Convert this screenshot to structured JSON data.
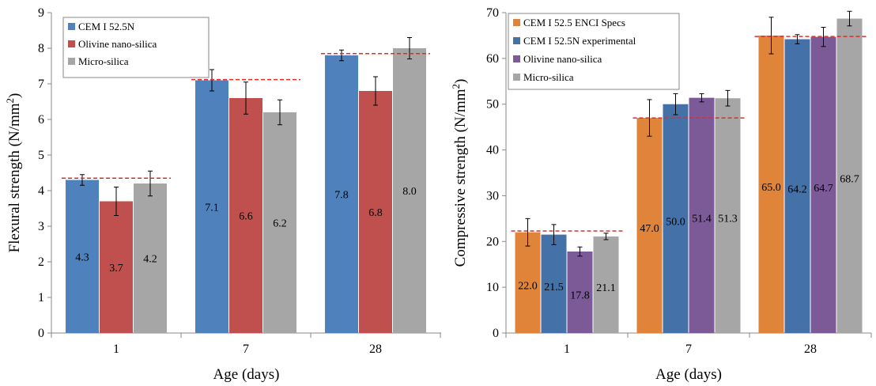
{
  "chart_data": [
    {
      "type": "bar",
      "title": "",
      "xlabel": "Age (days)",
      "ylabel": "Flexural strength (N/mm",
      "ylabel_sup": "2",
      "ylabel_end": ")",
      "categories": [
        "1",
        "7",
        "28"
      ],
      "ylim": [
        0,
        9
      ],
      "yticks": [
        "0",
        "1",
        "2",
        "3",
        "4",
        "5",
        "6",
        "7",
        "8",
        "9"
      ],
      "grid": false,
      "legend_position": "top-left",
      "series": [
        {
          "name": "CEM I 52.5N",
          "color": "#4f81bd",
          "values": [
            4.3,
            7.1,
            7.8
          ],
          "error": [
            0.15,
            0.3,
            0.15
          ],
          "labels": [
            "4.3",
            "7.1",
            "7.8"
          ]
        },
        {
          "name": "Olivine nano-silica",
          "color": "#c0504d",
          "values": [
            3.7,
            6.6,
            6.8
          ],
          "error": [
            0.4,
            0.45,
            0.4
          ],
          "labels": [
            "3.7",
            "6.6",
            "6.8"
          ]
        },
        {
          "name": "Micro-silica",
          "color": "#a6a6a6",
          "values": [
            4.2,
            6.2,
            8.0
          ],
          "error": [
            0.35,
            0.35,
            0.3
          ],
          "labels": [
            "4.2",
            "6.2",
            "8.0"
          ]
        }
      ],
      "reference_lines": [
        4.35,
        7.12,
        7.85
      ],
      "reference_color": "#d9302c"
    },
    {
      "type": "bar",
      "title": "",
      "xlabel": "Age (days)",
      "ylabel": "Compressive strength (N/mm",
      "ylabel_sup": "2",
      "ylabel_end": ")",
      "categories": [
        "1",
        "7",
        "28"
      ],
      "ylim": [
        0,
        70
      ],
      "yticks": [
        "0",
        "10",
        "20",
        "30",
        "40",
        "50",
        "60",
        "70"
      ],
      "grid": false,
      "legend_position": "top-left",
      "series": [
        {
          "name": "CEM I 52.5 ENCI Specs",
          "color": "#e0843a",
          "values": [
            22.0,
            47.0,
            65.0
          ],
          "error": [
            3.0,
            4.0,
            4.0
          ],
          "labels": [
            "22.0",
            "47.0",
            "65.0"
          ]
        },
        {
          "name": "CEM I 52.5N experimental",
          "color": "#4472a8",
          "values": [
            21.5,
            50.0,
            64.2
          ],
          "error": [
            2.2,
            2.3,
            1.0
          ],
          "labels": [
            "21.5",
            "50.0",
            "64.2"
          ]
        },
        {
          "name": "Olivine nano-silica",
          "color": "#7b5a97",
          "values": [
            17.8,
            51.4,
            64.7
          ],
          "error": [
            1.0,
            0.9,
            2.1
          ],
          "labels": [
            "17.8",
            "51.4",
            "64.7"
          ]
        },
        {
          "name": "Micro-silica",
          "color": "#a6a6a6",
          "values": [
            21.1,
            51.3,
            68.7
          ],
          "error": [
            0.7,
            1.7,
            1.6
          ],
          "labels": [
            "21.1",
            "51.3",
            "68.7"
          ]
        }
      ],
      "reference_lines": [
        22.3,
        47.0,
        64.8
      ],
      "reference_color": "#d9302c"
    }
  ]
}
